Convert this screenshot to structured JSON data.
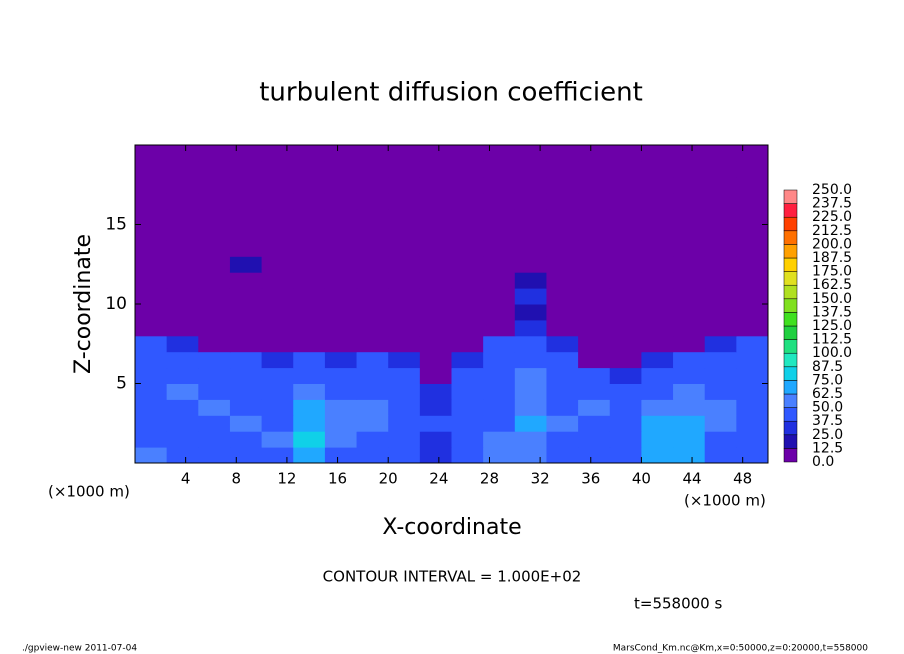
{
  "chart_data": {
    "type": "heatmap",
    "title": "turbulent diffusion coefficient",
    "xlabel": "X-coordinate",
    "ylabel": "Z-coordinate",
    "x_unit_left": "(×1000 m)",
    "x_unit_right": "(×1000 m)",
    "xlim": [
      0,
      50
    ],
    "xticks": [
      4,
      8,
      12,
      16,
      20,
      24,
      28,
      32,
      36,
      40,
      44,
      48
    ],
    "ylim": [
      0,
      20
    ],
    "yticks": [
      5,
      10,
      15
    ],
    "z": [
      [
        55,
        45,
        40,
        40,
        45,
        70,
        45,
        40,
        40,
        35,
        45,
        50,
        60,
        45,
        40,
        45,
        65,
        65,
        45,
        40
      ],
      [
        45,
        45,
        40,
        45,
        50,
        75,
        50,
        45,
        40,
        35,
        45,
        50,
        60,
        45,
        40,
        45,
        70,
        70,
        45,
        40
      ],
      [
        45,
        40,
        45,
        50,
        45,
        70,
        50,
        50,
        45,
        40,
        45,
        45,
        65,
        50,
        45,
        45,
        65,
        65,
        50,
        45
      ],
      [
        40,
        45,
        50,
        45,
        45,
        65,
        55,
        50,
        45,
        35,
        40,
        45,
        60,
        45,
        50,
        45,
        60,
        60,
        50,
        45
      ],
      [
        45,
        50,
        45,
        45,
        40,
        55,
        45,
        45,
        40,
        25,
        40,
        45,
        55,
        45,
        45,
        40,
        45,
        50,
        45,
        45
      ],
      [
        45,
        45,
        40,
        40,
        40,
        45,
        40,
        45,
        40,
        0,
        40,
        45,
        50,
        45,
        40,
        25,
        40,
        45,
        45,
        45
      ],
      [
        45,
        40,
        40,
        40,
        25,
        40,
        25,
        40,
        25,
        0,
        25,
        40,
        45,
        40,
        0,
        0,
        25,
        40,
        40,
        45
      ],
      [
        40,
        25,
        0,
        0,
        0,
        0,
        0,
        0,
        0,
        0,
        0,
        40,
        40,
        25,
        0,
        0,
        0,
        0,
        25,
        40
      ],
      [
        0,
        0,
        0,
        0,
        0,
        0,
        0,
        0,
        0,
        0,
        0,
        0,
        25,
        0,
        0,
        0,
        0,
        0,
        0,
        0
      ],
      [
        12,
        0,
        0,
        0,
        0,
        0,
        0,
        0,
        0,
        0,
        0,
        0,
        20,
        0,
        0,
        0,
        0,
        0,
        0,
        0
      ],
      [
        0,
        0,
        0,
        0,
        12,
        0,
        0,
        0,
        0,
        0,
        0,
        0,
        30,
        0,
        0,
        0,
        0,
        0,
        0,
        0
      ],
      [
        0,
        12,
        0,
        0,
        0,
        0,
        0,
        12,
        0,
        0,
        0,
        0,
        15,
        0,
        0,
        0,
        0,
        0,
        0,
        0
      ],
      [
        0,
        0,
        0,
        15,
        0,
        0,
        12,
        0,
        0,
        0,
        0,
        0,
        0,
        0,
        0,
        0,
        0,
        0,
        12,
        0
      ],
      [
        0,
        0,
        0,
        0,
        0,
        0,
        0,
        0,
        0,
        0,
        0,
        0,
        0,
        0,
        0,
        0,
        0,
        0,
        0,
        0
      ],
      [
        0,
        0,
        0,
        0,
        0,
        0,
        0,
        0,
        0,
        0,
        0,
        0,
        0,
        0,
        0,
        0,
        0,
        0,
        0,
        0
      ],
      [
        0,
        0,
        0,
        0,
        0,
        0,
        0,
        0,
        0,
        0,
        0,
        0,
        0,
        0,
        0,
        0,
        0,
        0,
        0,
        0
      ],
      [
        0,
        0,
        0,
        0,
        0,
        0,
        0,
        0,
        0,
        0,
        0,
        0,
        0,
        0,
        0,
        0,
        0,
        0,
        0,
        0
      ],
      [
        0,
        0,
        0,
        0,
        0,
        0,
        0,
        0,
        0,
        0,
        0,
        0,
        0,
        0,
        0,
        0,
        0,
        0,
        0,
        0
      ],
      [
        0,
        0,
        0,
        0,
        0,
        0,
        0,
        0,
        0,
        0,
        0,
        0,
        0,
        0,
        0,
        0,
        0,
        0,
        0,
        0
      ],
      [
        0,
        0,
        0,
        0,
        0,
        0,
        0,
        0,
        0,
        0,
        0,
        0,
        0,
        0,
        0,
        0,
        0,
        0,
        0,
        0
      ]
    ],
    "levels": [
      {
        "value": 0,
        "label": "0.0"
      },
      {
        "value": 12.5,
        "label": "12.5"
      },
      {
        "value": 25,
        "label": "25.0"
      },
      {
        "value": 37.5,
        "label": "37.5"
      },
      {
        "value": 50,
        "label": "50.0"
      },
      {
        "value": 62.5,
        "label": "62.5"
      },
      {
        "value": 75,
        "label": "75.0"
      },
      {
        "value": 87.5,
        "label": "87.5"
      },
      {
        "value": 100,
        "label": "100.0"
      },
      {
        "value": 112.5,
        "label": "112.5"
      },
      {
        "value": 125,
        "label": "125.0"
      },
      {
        "value": 137.5,
        "label": "137.5"
      },
      {
        "value": 150,
        "label": "150.0"
      },
      {
        "value": 162.5,
        "label": "162.5"
      },
      {
        "value": 175,
        "label": "175.0"
      },
      {
        "value": 187.5,
        "label": "187.5"
      },
      {
        "value": 200,
        "label": "200.0"
      },
      {
        "value": 212.5,
        "label": "212.5"
      },
      {
        "value": 225,
        "label": "225.0"
      },
      {
        "value": 237.5,
        "label": "237.5"
      },
      {
        "value": 250,
        "label": "250.0"
      }
    ],
    "colors": [
      "#6c00a8",
      "#2010b0",
      "#2030e0",
      "#3058ff",
      "#4a80ff",
      "#20a8ff",
      "#10d0e8",
      "#20e8c0",
      "#20e080",
      "#20d040",
      "#40e020",
      "#80e020",
      "#b0e020",
      "#e0e020",
      "#ffd000",
      "#ffa000",
      "#ff7000",
      "#ff4000",
      "#ff2040",
      "#ff8888"
    ],
    "contour_interval": "CONTOUR INTERVAL = 1.000E+02",
    "time": "t=558000 s",
    "footer_left": "./gpview-new  2011-07-04",
    "footer_right": "MarsCond_Km.nc@Km,x=0:50000,z=0:20000,t=558000"
  }
}
